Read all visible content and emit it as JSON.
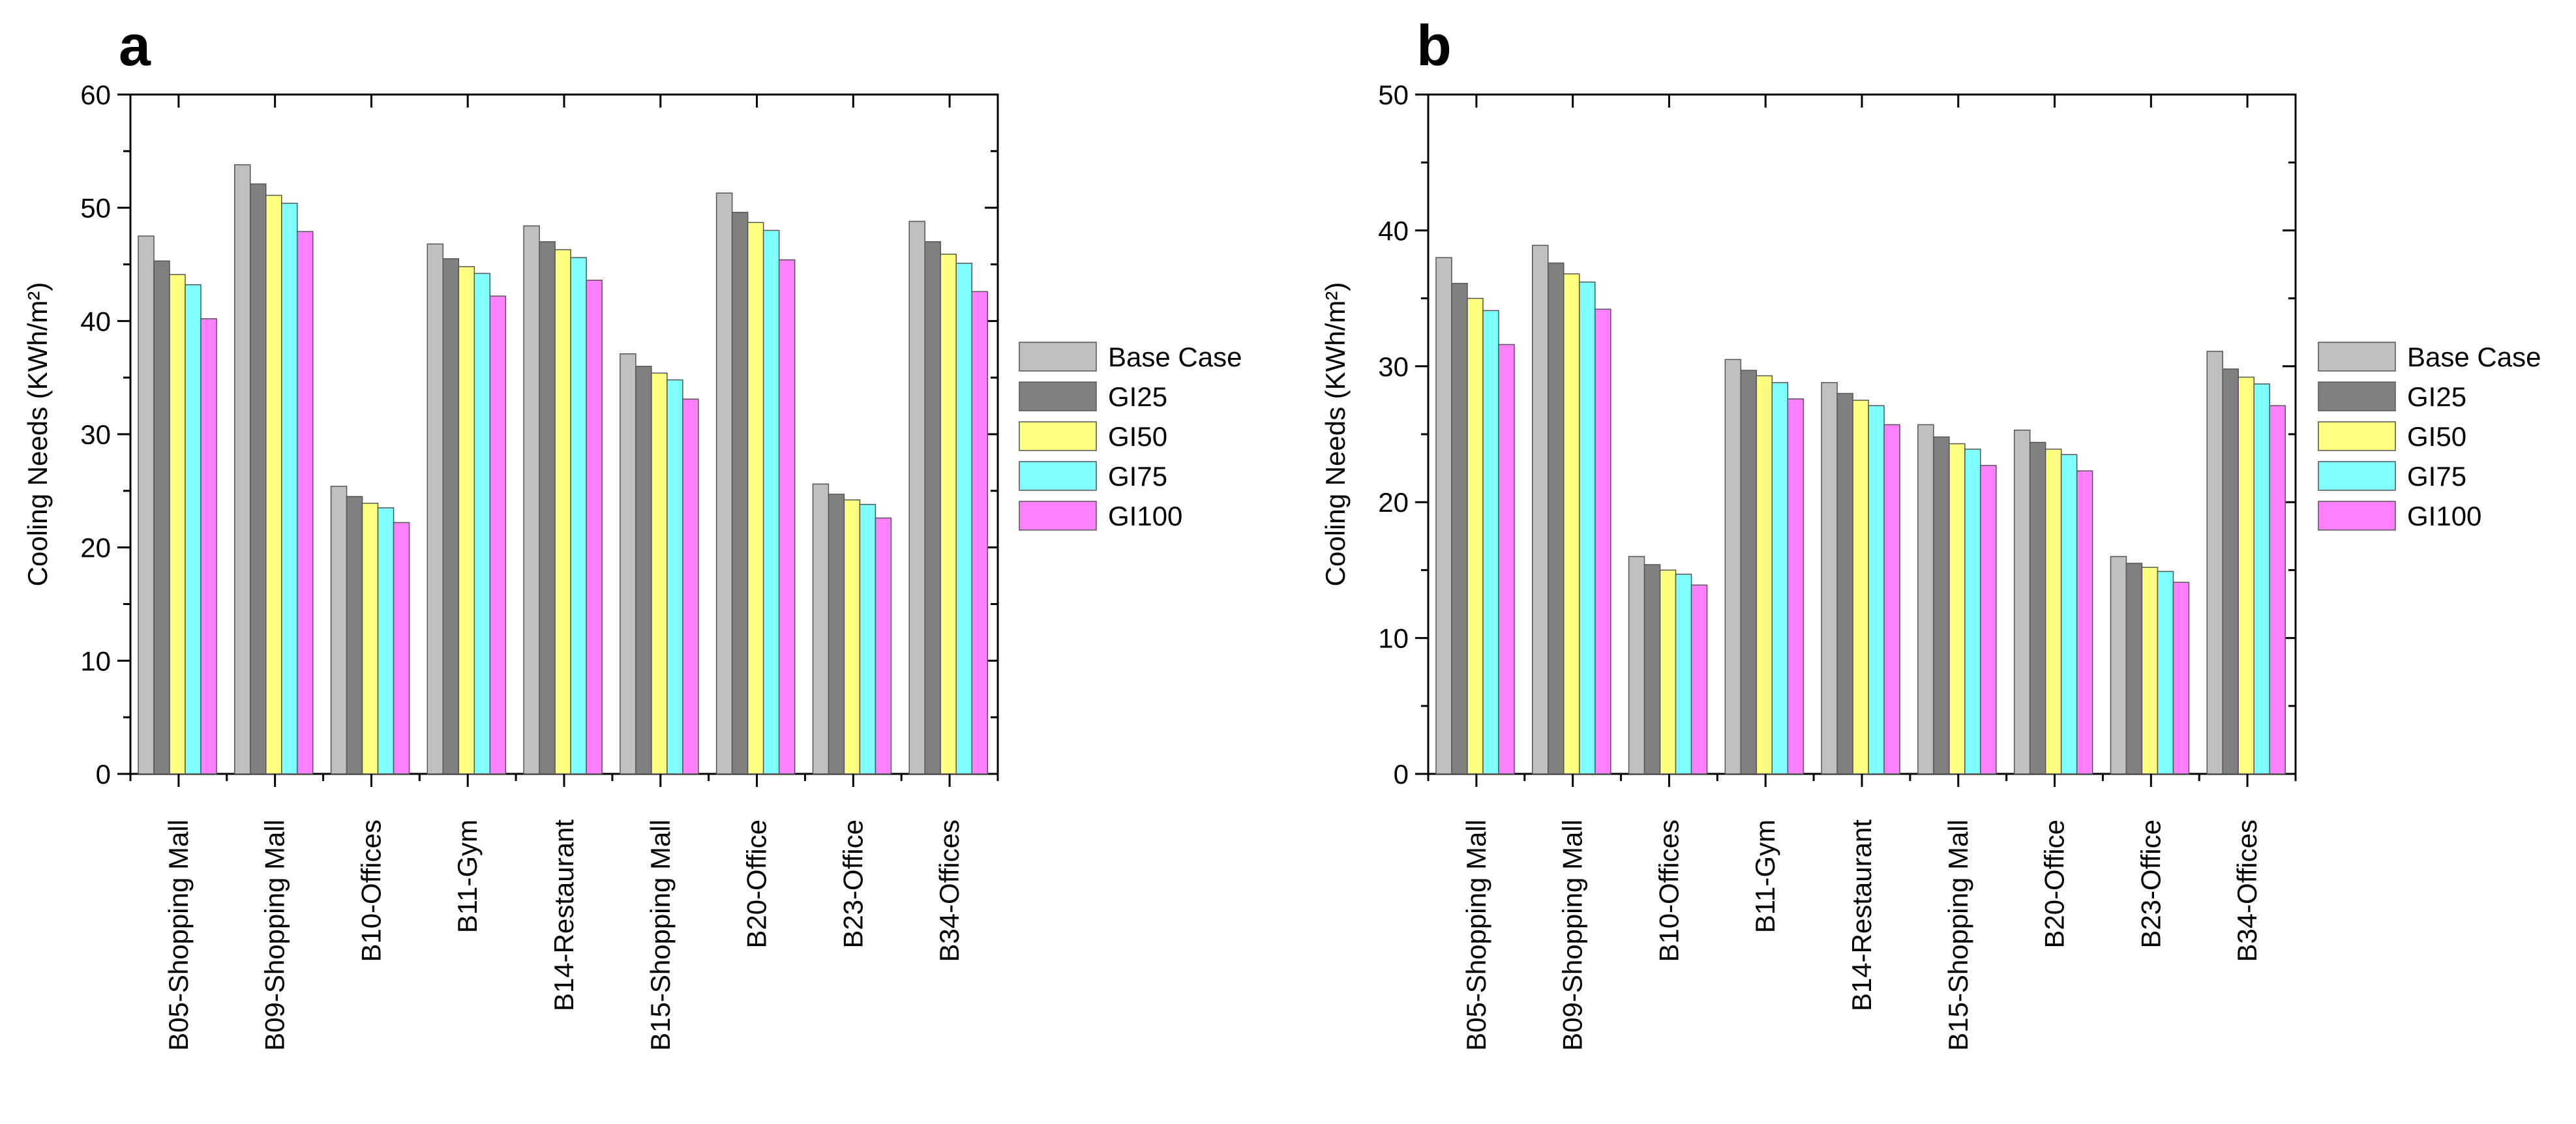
{
  "chart_data": [
    {
      "type": "bar",
      "panel_label": "a",
      "title": "",
      "xlabel": "",
      "ylabel": "Cooling Needs (KWh/m²)",
      "ylim": [
        0,
        60
      ],
      "yticks": [
        "0",
        "10",
        "20",
        "30",
        "40",
        "50",
        "60"
      ],
      "categories": [
        "B05-Shopping Mall",
        "B09-Shopping Mall",
        "B10-Offices",
        "B11-Gym",
        "B14-Restaurant",
        "B15-Shopping Mall",
        "B20-Office",
        "B23-Office",
        "B34-Offices"
      ],
      "legend_position": "right",
      "series": [
        {
          "name": "Base Case",
          "color": "#c0c0c0",
          "values": [
            47.5,
            53.8,
            25.4,
            46.8,
            48.4,
            37.1,
            51.3,
            25.6,
            48.8
          ]
        },
        {
          "name": "GI25",
          "color": "#808080",
          "values": [
            45.3,
            52.1,
            24.5,
            45.5,
            47.0,
            36.0,
            49.6,
            24.7,
            47.0
          ]
        },
        {
          "name": "GI50",
          "color": "#ffff80",
          "values": [
            44.1,
            51.1,
            23.9,
            44.8,
            46.3,
            35.4,
            48.7,
            24.2,
            45.9
          ]
        },
        {
          "name": "GI75",
          "color": "#80ffff",
          "values": [
            43.2,
            50.4,
            23.5,
            44.2,
            45.6,
            34.8,
            48.0,
            23.8,
            45.1
          ]
        },
        {
          "name": "GI100",
          "color": "#ff80ff",
          "values": [
            40.2,
            47.9,
            22.2,
            42.2,
            43.6,
            33.1,
            45.4,
            22.6,
            42.6
          ]
        }
      ]
    },
    {
      "type": "bar",
      "panel_label": "b",
      "title": "",
      "xlabel": "",
      "ylabel": "Cooling Needs (KWh/m²)",
      "ylim": [
        0,
        50
      ],
      "yticks": [
        "0",
        "10",
        "20",
        "30",
        "40",
        "50"
      ],
      "categories": [
        "B05-Shopping Mall",
        "B09-Shopping Mall",
        "B10-Offices",
        "B11-Gym",
        "B14-Restaurant",
        "B15-Shopping Mall",
        "B20-Office",
        "B23-Office",
        "B34-Offices"
      ],
      "legend_position": "right",
      "series": [
        {
          "name": "Base Case",
          "color": "#c0c0c0",
          "values": [
            38.0,
            38.9,
            16.0,
            30.5,
            28.8,
            25.7,
            25.3,
            16.0,
            31.1
          ]
        },
        {
          "name": "GI25",
          "color": "#808080",
          "values": [
            36.1,
            37.6,
            15.4,
            29.7,
            28.0,
            24.8,
            24.4,
            15.5,
            29.8
          ]
        },
        {
          "name": "GI50",
          "color": "#ffff80",
          "values": [
            35.0,
            36.8,
            15.0,
            29.3,
            27.5,
            24.3,
            23.9,
            15.2,
            29.2
          ]
        },
        {
          "name": "GI75",
          "color": "#80ffff",
          "values": [
            34.1,
            36.2,
            14.7,
            28.8,
            27.1,
            23.9,
            23.5,
            14.9,
            28.7
          ]
        },
        {
          "name": "GI100",
          "color": "#ff80ff",
          "values": [
            31.6,
            34.2,
            13.9,
            27.6,
            25.7,
            22.7,
            22.3,
            14.1,
            27.1
          ]
        }
      ]
    }
  ]
}
